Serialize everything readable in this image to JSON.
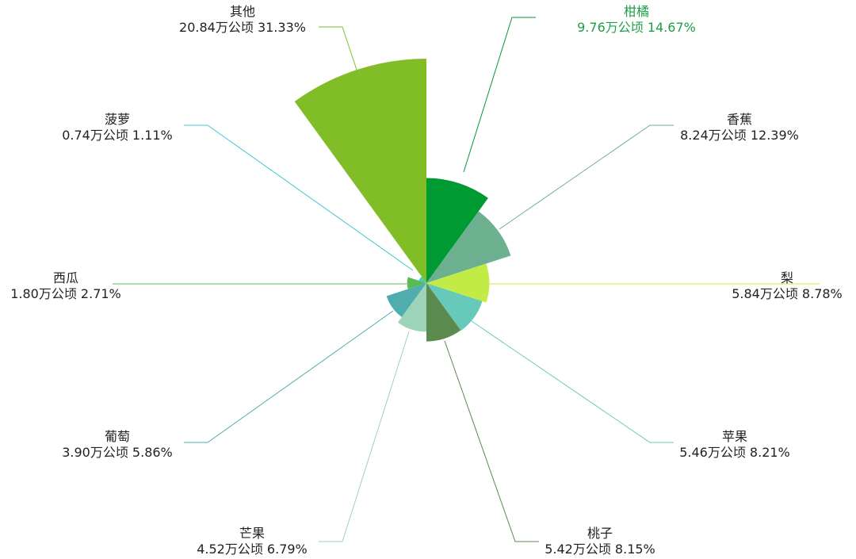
{
  "chart_data": {
    "type": "pie",
    "subtype": "nightingale-rose",
    "unit": "万公顷",
    "slices": [
      {
        "name": "柑橘",
        "value": 9.76,
        "percent": "14.67%",
        "value_label": "9.76万公顷",
        "color": "#009a33",
        "label_color": "#1f9e45"
      },
      {
        "name": "香蕉",
        "value": 8.24,
        "percent": "12.39%",
        "value_label": "8.24万公顷",
        "color": "#6cb08f",
        "label_color": "#222222"
      },
      {
        "name": "梨",
        "value": 5.84,
        "percent": "8.78%",
        "value_label": "5.84万公顷",
        "color": "#c2ec45",
        "label_color": "#222222"
      },
      {
        "name": "苹果",
        "value": 5.46,
        "percent": "8.21%",
        "value_label": "5.46万公顷",
        "color": "#66c9b9",
        "label_color": "#222222"
      },
      {
        "name": "桃子",
        "value": 5.42,
        "percent": "8.15%",
        "value_label": "5.42万公顷",
        "color": "#5b8a4e",
        "label_color": "#222222"
      },
      {
        "name": "芒果",
        "value": 4.52,
        "percent": "6.79%",
        "value_label": "4.52万公顷",
        "color": "#9dd3b9",
        "label_color": "#222222"
      },
      {
        "name": "葡萄",
        "value": 3.9,
        "percent": "5.86%",
        "value_label": "3.90万公顷",
        "color": "#4fadae",
        "label_color": "#222222"
      },
      {
        "name": "西瓜",
        "value": 1.8,
        "percent": "2.71%",
        "value_label": "1.80万公顷",
        "color": "#58bb55",
        "label_color": "#222222"
      },
      {
        "name": "菠萝",
        "value": 0.74,
        "percent": "1.11%",
        "value_label": "0.74万公顷",
        "color": "#44c7cf",
        "label_color": "#222222"
      },
      {
        "name": "其他",
        "value": 20.84,
        "percent": "31.33%",
        "value_label": "20.84万公顷",
        "color": "#80bd27",
        "label_color": "#222222"
      }
    ]
  }
}
